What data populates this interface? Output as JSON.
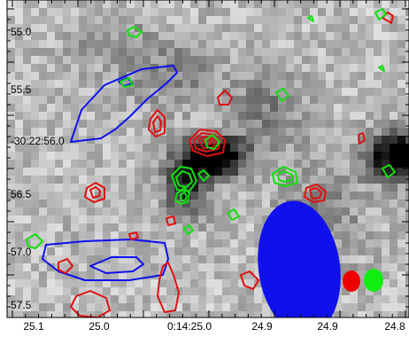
{
  "axes": {
    "dec_labels": [
      "55.0",
      "55.5",
      "-30:22:56.0",
      "56.5",
      "57.0",
      "57.5"
    ],
    "ra_labels": [
      "25.1",
      "25.0",
      "0:14:25.0",
      "24.9",
      "24.9",
      "24.8"
    ]
  },
  "contour_colors": {
    "blue": "#1010ee",
    "red": "#e01010",
    "green": "#12e012"
  },
  "beams": [
    {
      "name": "blue-beam",
      "color": "#1010ee"
    },
    {
      "name": "red-beam",
      "color": "#ee0000"
    },
    {
      "name": "green-beam",
      "color": "#11ee11"
    }
  ]
}
